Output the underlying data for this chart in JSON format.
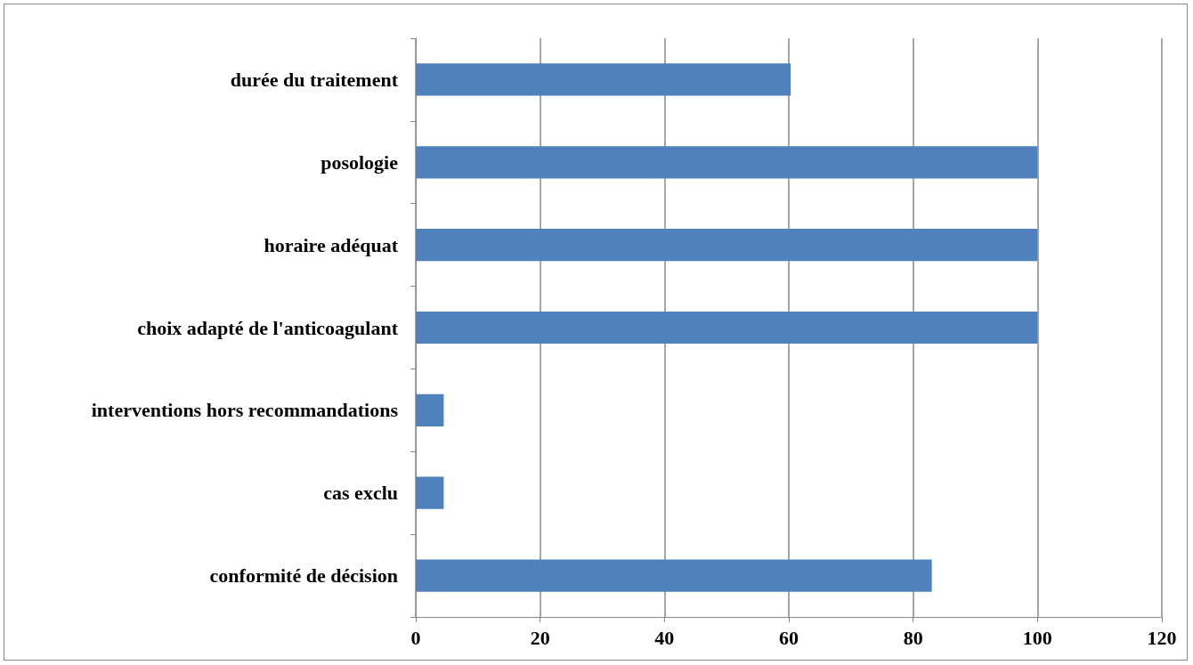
{
  "chart_data": {
    "type": "bar",
    "orientation": "horizontal",
    "categories": [
      "durée du traitement",
      "posologie",
      "horaire adéquat",
      "choix adapté de l'anticoagulant",
      "interventions hors recommandations",
      "cas exclu",
      "conformité de décision"
    ],
    "values": [
      60.3,
      100,
      100,
      100,
      4.5,
      4.5,
      83
    ],
    "color": "#4f81bd",
    "xlim": [
      0,
      120
    ],
    "xticks": [
      0,
      20,
      40,
      60,
      80,
      100,
      120
    ],
    "grid": "x"
  }
}
